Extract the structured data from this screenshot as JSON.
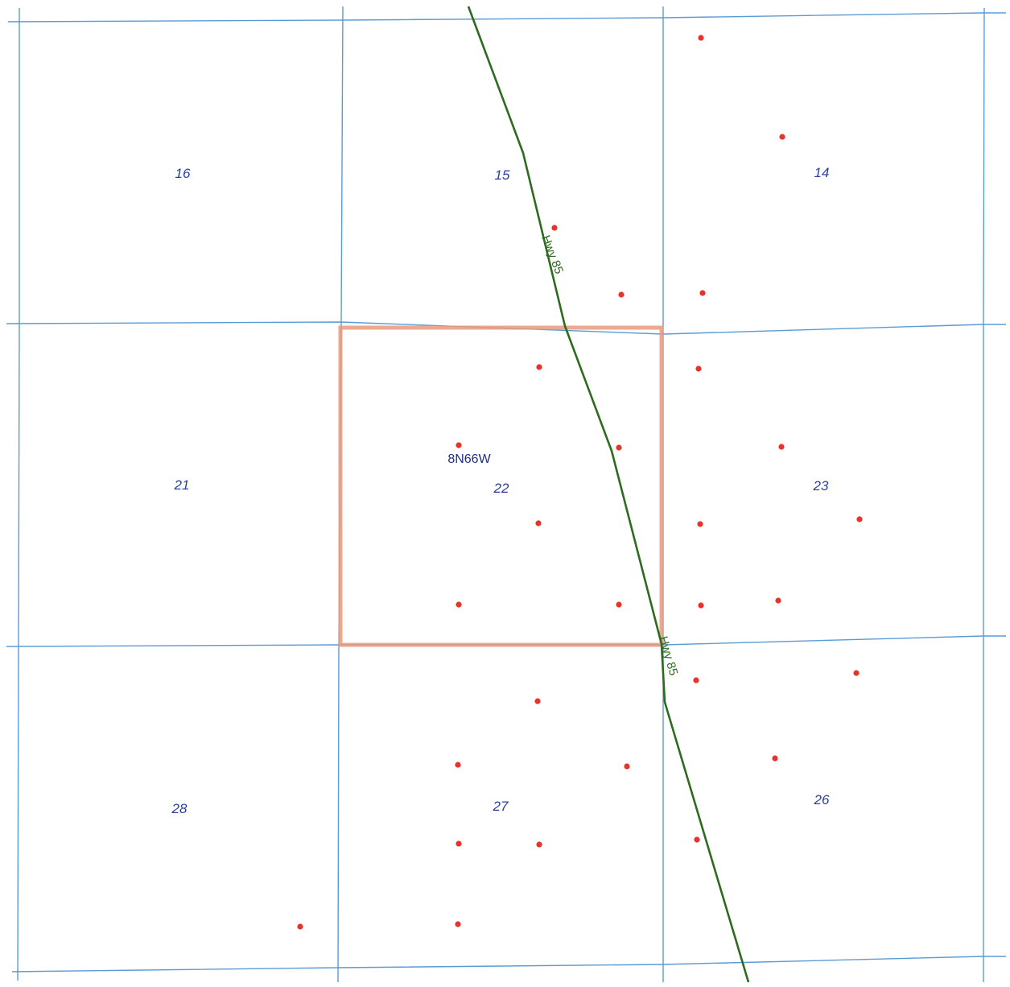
{
  "map": {
    "colors": {
      "background": "#ffffff",
      "section_grid": "#5b9bd5",
      "section_label": "#2a3f9e",
      "township_label": "#1f2f80",
      "highway": "#2e6b1e",
      "subject_section_outline": "#e89a7c",
      "well_points": "#e8322a"
    },
    "township": {
      "label": "8N66W"
    },
    "road": {
      "label_1": "Hwy 85",
      "label_2": "Hwy 85"
    },
    "sections": [
      {
        "id": "s16",
        "label": "16"
      },
      {
        "id": "s15",
        "label": "15"
      },
      {
        "id": "s14",
        "label": "14"
      },
      {
        "id": "s21",
        "label": "21"
      },
      {
        "id": "s22",
        "label": "22"
      },
      {
        "id": "s23",
        "label": "23"
      },
      {
        "id": "s28",
        "label": "28"
      },
      {
        "id": "s27",
        "label": "27"
      },
      {
        "id": "s26",
        "label": "26"
      }
    ],
    "highlighted_section": "22",
    "point_feature": "well-point"
  }
}
